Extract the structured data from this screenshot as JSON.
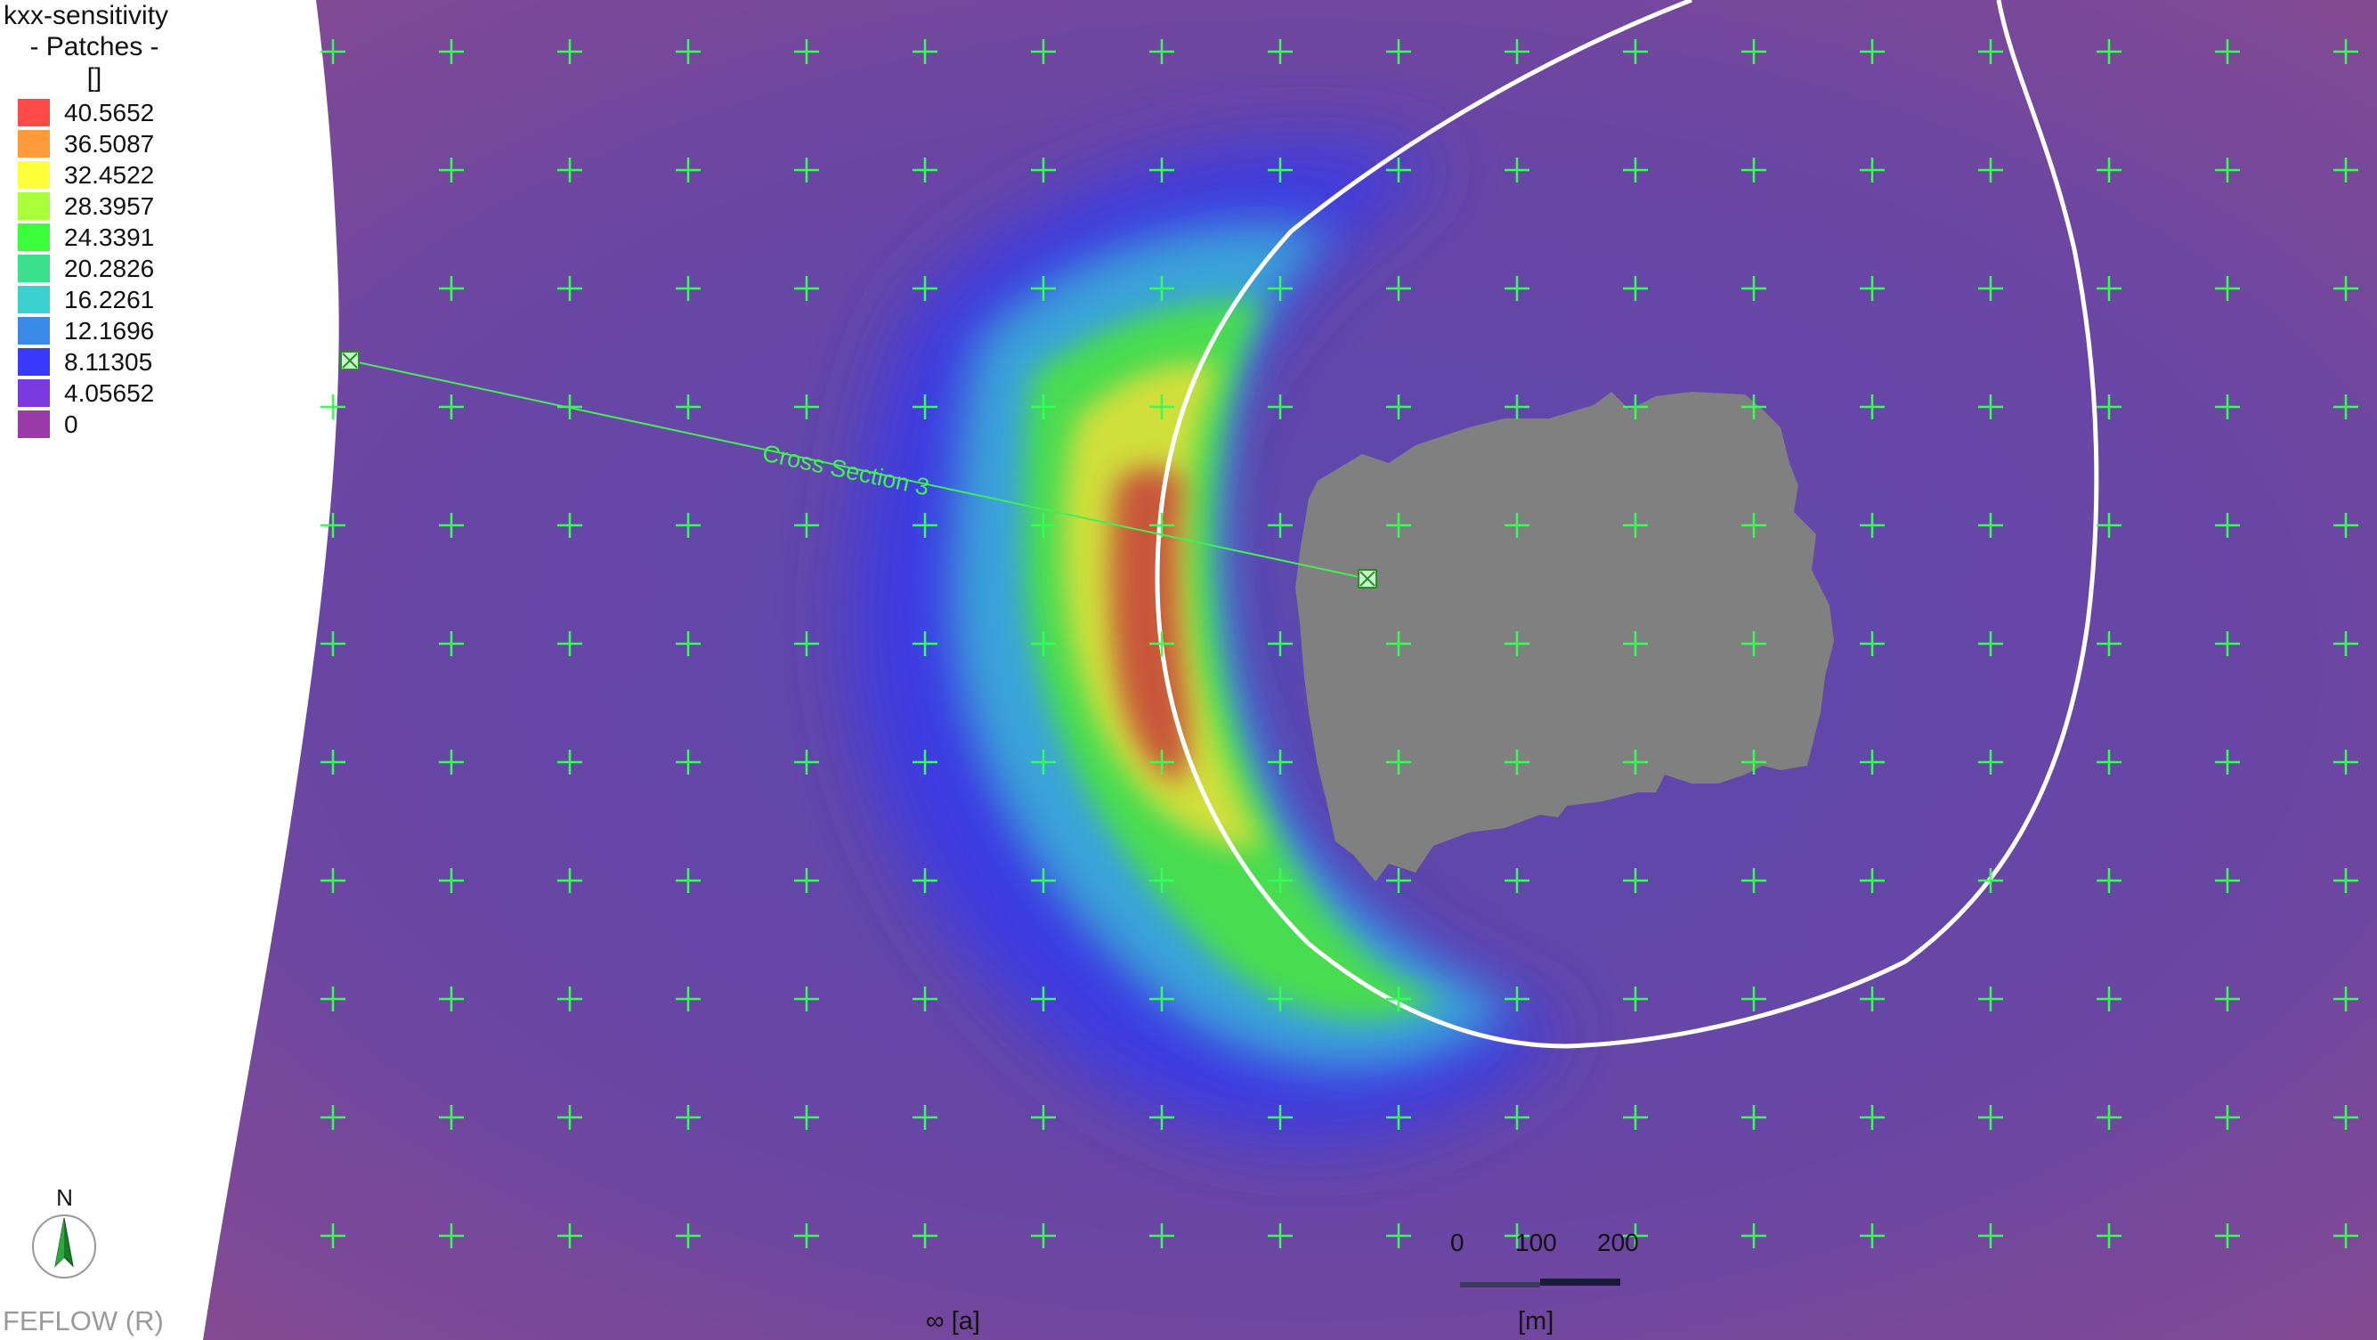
{
  "legend": {
    "title": "kxx-sensitivity",
    "subtitle": "- Patches -",
    "unit": "[]",
    "items": [
      {
        "label": "40.5652",
        "color": "#ff4a4a"
      },
      {
        "label": "36.5087",
        "color": "#ff9a3a"
      },
      {
        "label": "32.4522",
        "color": "#ffff3a"
      },
      {
        "label": "28.3957",
        "color": "#a8ff3a"
      },
      {
        "label": "24.3391",
        "color": "#3aff3a"
      },
      {
        "label": "20.2826",
        "color": "#3ae08c"
      },
      {
        "label": "16.2261",
        "color": "#3ad0d0"
      },
      {
        "label": "12.1696",
        "color": "#3a8ae8"
      },
      {
        "label": "8.11305",
        "color": "#3a3aff"
      },
      {
        "label": "4.05652",
        "color": "#7a3ae0"
      },
      {
        "label": "0",
        "color": "#9a3aa8"
      }
    ]
  },
  "map": {
    "cross_section_label": "Cross Section 3",
    "background_color": "#6a4aa0",
    "inactive_color": "#808080",
    "grid_marker_color": "#33ff55",
    "contour_color": "#ffffff"
  },
  "compass": {
    "letter": "N"
  },
  "brand": "FEFLOW (R)",
  "time_label": "∞ [a]",
  "scale": {
    "ticks": [
      "0",
      "100",
      "200"
    ],
    "unit": "[m]"
  }
}
